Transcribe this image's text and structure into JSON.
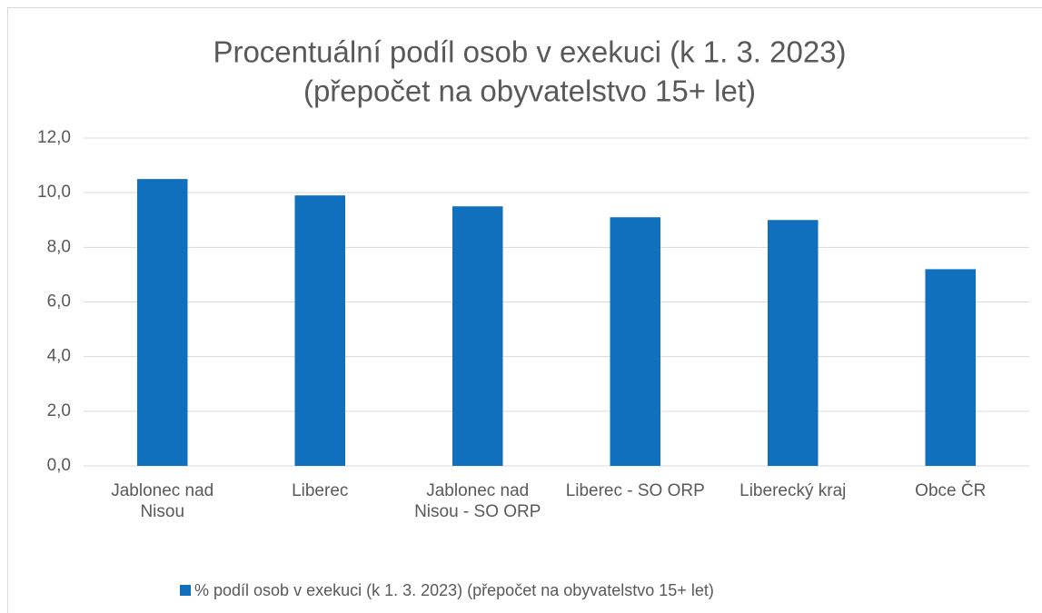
{
  "chart_data": {
    "type": "bar",
    "title": [
      "Procentuální podíl osob v exekuci (k 1. 3. 2023)",
      "(přepočet na obyvatelstvo 15+ let)"
    ],
    "categories": [
      "Jablonec nad Nisou",
      "Liberec",
      "Jablonec nad Nisou - SO ORP",
      "Liberec - SO ORP",
      "Liberecký kraj",
      "Obce ČR"
    ],
    "series": [
      {
        "name": "% podíl osob v exekuci (k 1. 3. 2023) (přepočet na obyvatelstvo 15+ let)",
        "color": "#1170bd",
        "values": [
          10.5,
          9.9,
          9.5,
          9.1,
          9.0,
          7.2
        ]
      }
    ],
    "ylim": [
      0,
      12
    ],
    "yticks": [
      {
        "value": 0,
        "label": "0,0"
      },
      {
        "value": 2,
        "label": "2,0"
      },
      {
        "value": 4,
        "label": "4,0"
      },
      {
        "value": 6,
        "label": "6,0"
      },
      {
        "value": 8,
        "label": "8,0"
      },
      {
        "value": 10,
        "label": "10,0"
      },
      {
        "value": 12,
        "label": "12,0"
      }
    ],
    "grid": true,
    "legend": "bottom"
  }
}
